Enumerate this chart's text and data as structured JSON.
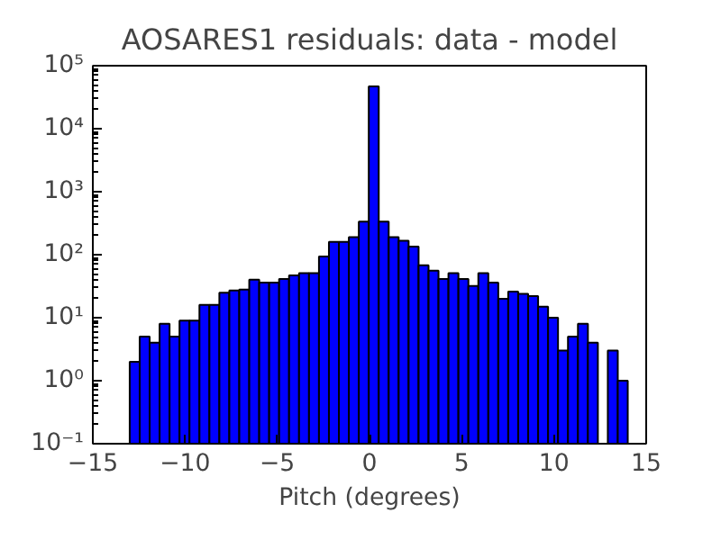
{
  "chart_data": {
    "type": "histogram",
    "title": "AOSARES1 residuals: data - model",
    "xlabel": "Pitch (degrees)",
    "color": "#0000ff",
    "log": "y",
    "grid": false,
    "bins": [
      -13,
      -12.46,
      -11.92,
      -11.38,
      -10.84,
      -10.3,
      -9.76,
      -9.22,
      -8.68,
      -8.14,
      -7.6,
      -7.06,
      -6.52,
      -5.98,
      -5.44,
      -4.9,
      -4.36,
      -3.82,
      -3.28,
      -2.74,
      -2.2,
      -1.66,
      -1.12,
      -0.58,
      -0.04,
      0.5,
      1.04,
      1.58,
      2.12,
      2.66,
      3.2,
      3.74,
      4.28,
      4.82,
      5.36,
      5.9,
      6.44,
      6.98,
      7.52,
      8.06,
      8.6,
      9.14,
      9.68,
      10.22,
      10.76,
      11.3,
      11.84,
      12.38,
      12.92,
      13.46,
      14
    ],
    "values": [
      2,
      5,
      4,
      8,
      5,
      9,
      9,
      16,
      16,
      25,
      27,
      28,
      40,
      36,
      36,
      41,
      47,
      51,
      51,
      94,
      160,
      160,
      190,
      336,
      47000,
      336,
      190,
      166,
      134,
      68,
      56,
      41,
      51,
      41,
      32,
      51,
      36,
      20,
      26,
      24,
      22,
      15,
      10,
      3,
      5,
      8,
      4,
      null,
      3,
      1
    ],
    "xlim": [
      -15,
      15
    ],
    "xticks": [
      -15,
      -10,
      -5,
      0,
      5,
      10,
      15
    ],
    "ylim": [
      0.1,
      100000
    ],
    "yticks": [
      {
        "value": 0.1,
        "label": "10⁻¹"
      },
      {
        "value": 1,
        "label": "10⁰"
      },
      {
        "value": 10,
        "label": "10¹"
      },
      {
        "value": 100,
        "label": "10²"
      },
      {
        "value": 1000,
        "label": "10³"
      },
      {
        "value": 10000,
        "label": "10⁴"
      },
      {
        "value": 100000,
        "label": "10⁵"
      }
    ]
  }
}
